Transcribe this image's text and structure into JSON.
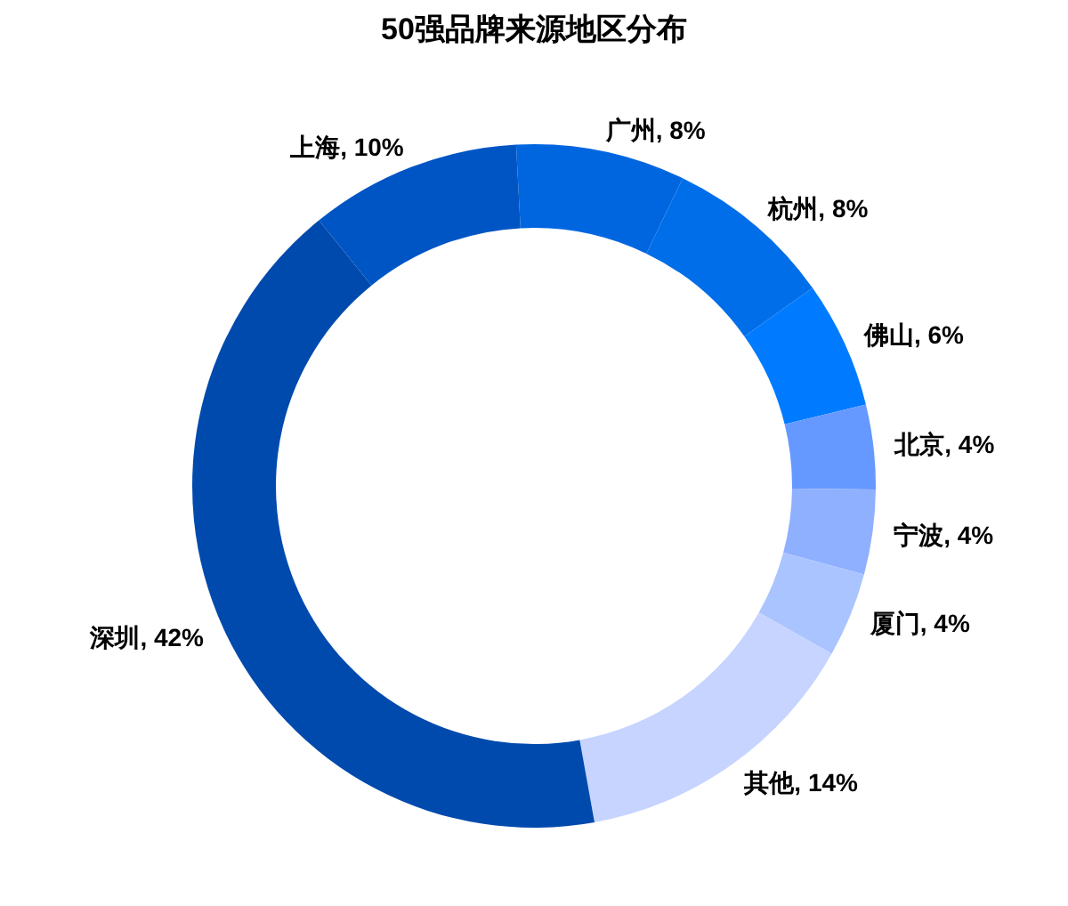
{
  "chart_data": {
    "type": "donut",
    "title": "50强品牌来源地区分布",
    "categories": [
      "广州",
      "杭州",
      "佛山",
      "北京",
      "宁波",
      "厦门",
      "其他",
      "深圳",
      "上海"
    ],
    "values": [
      8,
      8,
      6,
      4,
      4,
      4,
      14,
      42,
      10
    ],
    "value_labels": [
      "8%",
      "8%",
      "6%",
      "4%",
      "4%",
      "4%",
      "14%",
      "42%",
      "10%"
    ],
    "colors": [
      "#0066e0",
      "#006ee8",
      "#007bff",
      "#6699ff",
      "#8fb0ff",
      "#aac4ff",
      "#c6d4ff",
      "#004aad",
      "#0055c5"
    ],
    "legend": false
  }
}
